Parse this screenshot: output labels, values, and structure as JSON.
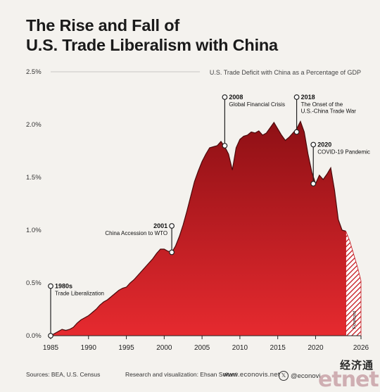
{
  "title_line1": "The Rise and Fall of",
  "title_line2": "U.S. Trade Liberalism with China",
  "footer": {
    "sources": "Sources: BEA, U.S. Census",
    "credit": "Research and visualization: Ehsan Soltani",
    "site": "www.econovis.net",
    "handle": "@econovi",
    "handle_icon": "x-logo-icon"
  },
  "watermark": {
    "chinese": "经济通",
    "logo": "etnet"
  },
  "colors": {
    "area_top": "#8e1015",
    "area_bottom": "#e62a2f",
    "outline": "#4a0a0c",
    "forecast_hatch": "#c4161c",
    "background": "#f4f2ee"
  },
  "chart_data": {
    "type": "area",
    "subtitle": "U.S. Trade Deficit with China as a Percentage of GDP",
    "xlabel": "",
    "ylabel": "",
    "x_ticks": [
      1985,
      1990,
      1995,
      2000,
      2005,
      2010,
      2015,
      2020,
      2026
    ],
    "y_ticks": [
      0.0,
      0.5,
      1.0,
      1.5,
      2.0,
      2.5
    ],
    "y_tick_labels": [
      "0.0%",
      "0.5%",
      "1.0%",
      "1.5%",
      "2.0%",
      "2.5%"
    ],
    "xlim": [
      1985,
      2026
    ],
    "ylim": [
      0,
      2.5
    ],
    "grid": false,
    "series": [
      {
        "x": [
          1985,
          1985.5,
          1986,
          1986.5,
          1987,
          1987.5,
          1988,
          1988.5,
          1989,
          1989.5,
          1990,
          1990.5,
          1991,
          1991.5,
          1992,
          1992.5,
          1993,
          1993.5,
          1994,
          1994.5,
          1995,
          1995.5,
          1996,
          1996.5,
          1997,
          1997.5,
          1998,
          1998.5,
          1999,
          1999.5,
          2000,
          2000.5,
          2001,
          2001.5,
          2002,
          2002.5,
          2003,
          2003.5,
          2004,
          2004.5,
          2005,
          2005.5,
          2006,
          2006.5,
          2007,
          2007.5,
          2008,
          2008.5,
          2009,
          2009.5,
          2010,
          2010.5,
          2011,
          2011.5,
          2012,
          2012.5,
          2013,
          2013.5,
          2014,
          2014.5,
          2015,
          2015.5,
          2016,
          2016.5,
          2017,
          2017.5,
          2018,
          2018.5,
          2019,
          2019.5,
          2020,
          2020.5,
          2021,
          2021.5,
          2022,
          2022.5,
          2023,
          2023.5,
          2024
        ],
        "values": [
          0.0,
          0.02,
          0.04,
          0.06,
          0.05,
          0.06,
          0.08,
          0.12,
          0.15,
          0.17,
          0.19,
          0.22,
          0.25,
          0.29,
          0.32,
          0.34,
          0.37,
          0.4,
          0.43,
          0.45,
          0.46,
          0.5,
          0.53,
          0.57,
          0.61,
          0.65,
          0.69,
          0.73,
          0.78,
          0.82,
          0.82,
          0.8,
          0.79,
          0.85,
          0.94,
          1.05,
          1.18,
          1.32,
          1.46,
          1.56,
          1.65,
          1.72,
          1.78,
          1.79,
          1.8,
          1.84,
          1.79,
          1.72,
          1.57,
          1.78,
          1.86,
          1.89,
          1.9,
          1.93,
          1.92,
          1.94,
          1.9,
          1.92,
          1.97,
          2.02,
          1.96,
          1.9,
          1.85,
          1.88,
          1.92,
          1.96,
          2.03,
          1.93,
          1.72,
          1.55,
          1.44,
          1.52,
          1.48,
          1.53,
          1.59,
          1.38,
          1.1,
          1.0,
          0.99
        ]
      },
      {
        "forecast": true,
        "label": "Forecast",
        "x": [
          2024,
          2024.5,
          2025,
          2025.5,
          2026
        ],
        "values": [
          0.99,
          0.9,
          0.78,
          0.66,
          0.52
        ]
      }
    ],
    "annotations": [
      {
        "x": 1985,
        "y": 0.0,
        "label_top": 0.47,
        "year": "1980s",
        "text": "Trade Liberalization",
        "side": "right"
      },
      {
        "x": 2001,
        "y": 0.79,
        "label_top": 1.04,
        "year": "2001",
        "text": "China Accession to WTO",
        "side": "left"
      },
      {
        "x": 2008,
        "y": 1.8,
        "label_top": 2.26,
        "year": "2008",
        "text": "Global Financial Crisis",
        "side": "right"
      },
      {
        "x": 2017.5,
        "y": 1.93,
        "label_top": 2.26,
        "year": "2018",
        "text": "The Onset of the\nU.S.-China Trade War",
        "side": "right"
      },
      {
        "x": 2019.7,
        "y": 1.44,
        "label_top": 1.81,
        "year": "2020",
        "text": "COVID-19 Pandemic",
        "side": "right"
      }
    ]
  }
}
